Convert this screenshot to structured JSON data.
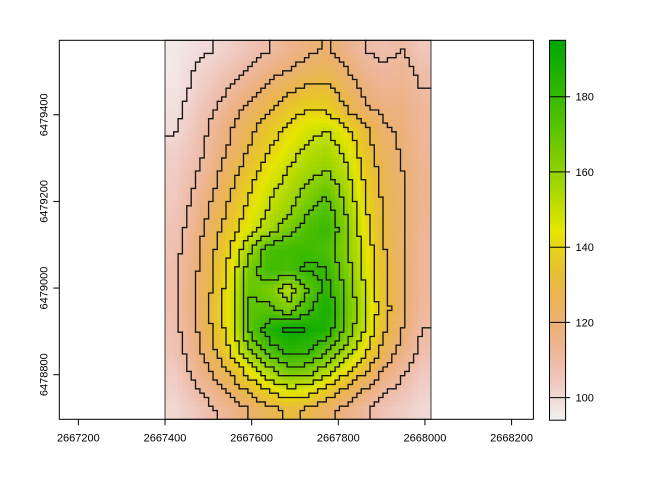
{
  "chart_data": {
    "type": "heatmap",
    "title": "",
    "description": "Raster elevation map (volcano) with stair-step contour-class polygon outlines and vertical color legend",
    "x_axis": {
      "tick_values": [
        2667200,
        2667400,
        2667600,
        2667800,
        2668000,
        2668200
      ]
    },
    "y_axis": {
      "tick_values": [
        6478800,
        6479000,
        6479200,
        6479400
      ]
    },
    "colorbar": {
      "tick_values": [
        100,
        120,
        140,
        160,
        180
      ],
      "value_min": 94,
      "value_max": 195,
      "legend_position": "right",
      "palette": "terrain-reversed",
      "palette_anchors": {
        "low": "#F2F2F2",
        "low_mid": "#ECB176",
        "mid": "#E6E600",
        "high": "#00A600"
      }
    },
    "raster": {
      "x_min": 2667400,
      "x_max": 2668014,
      "y_min": 6478697,
      "y_max": 6479572,
      "contour_interval": 10,
      "grid_rows": 19,
      "grid_cols": 14,
      "elevation_grid_north_to_south": [
        [
          96,
          98,
          100,
          103,
          106,
          110,
          114,
          118,
          121,
          116,
          110,
          108,
          110,
          105
        ],
        [
          96,
          100,
          103,
          107,
          111,
          116,
          120,
          124,
          126,
          121,
          114,
          111,
          113,
          108
        ],
        [
          97,
          101,
          106,
          111,
          117,
          123,
          128,
          132,
          133,
          126,
          118,
          114,
          115,
          110
        ],
        [
          98,
          103,
          109,
          116,
          123,
          130,
          136,
          140,
          139,
          131,
          122,
          118,
          117,
          112
        ],
        [
          99,
          105,
          112,
          120,
          128,
          136,
          142,
          147,
          150,
          143,
          132,
          122,
          118,
          112
        ],
        [
          102,
          106,
          113,
          122,
          131,
          140,
          146,
          152,
          155,
          148,
          135,
          124,
          119,
          113
        ],
        [
          103,
          108,
          116,
          126,
          136,
          144,
          150,
          156,
          160,
          152,
          138,
          126,
          120,
          114
        ],
        [
          104,
          110,
          119,
          130,
          140,
          148,
          154,
          162,
          168,
          156,
          140,
          128,
          121,
          114
        ],
        [
          105,
          112,
          122,
          133,
          143,
          151,
          158,
          168,
          175,
          160,
          142,
          129,
          121,
          114
        ],
        [
          106,
          114,
          125,
          137,
          147,
          156,
          166,
          175,
          180,
          163,
          144,
          130,
          121,
          113
        ],
        [
          107,
          116,
          128,
          141,
          158,
          176,
          178,
          178,
          175,
          163,
          147,
          131,
          121,
          112
        ],
        [
          108,
          117,
          130,
          144,
          166,
          178,
          176,
          182,
          180,
          165,
          148,
          132,
          122,
          112
        ],
        [
          108,
          118,
          131,
          146,
          170,
          165,
          153,
          170,
          184,
          168,
          150,
          133,
          122,
          112
        ],
        [
          108,
          118,
          132,
          147,
          172,
          172,
          164,
          178,
          188,
          170,
          152,
          134,
          122,
          111
        ],
        [
          107,
          117,
          131,
          146,
          172,
          186,
          192,
          190,
          186,
          168,
          150,
          132,
          120,
          110
        ],
        [
          106,
          115,
          128,
          142,
          162,
          176,
          184,
          182,
          172,
          158,
          143,
          127,
          117,
          108
        ],
        [
          104,
          112,
          122,
          133,
          146,
          158,
          168,
          166,
          156,
          144,
          132,
          120,
          112,
          105
        ],
        [
          102,
          108,
          115,
          124,
          133,
          142,
          148,
          146,
          138,
          129,
          120,
          112,
          107,
          102
        ],
        [
          100,
          104,
          109,
          115,
          121,
          127,
          131,
          129,
          123,
          117,
          111,
          106,
          103,
          100
        ]
      ]
    }
  }
}
